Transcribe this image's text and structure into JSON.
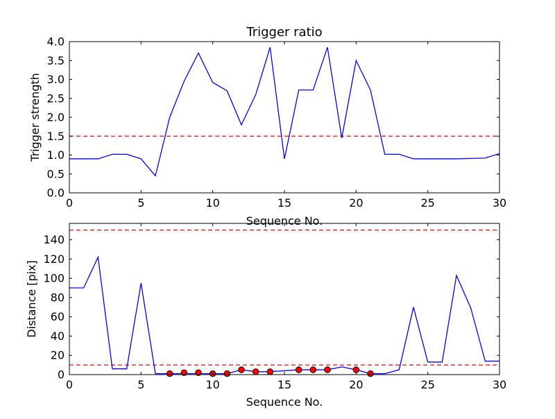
{
  "chart_data": [
    {
      "type": "line",
      "title": "Trigger ratio",
      "xlabel": "Sequence No.",
      "ylabel": "Trigger strength",
      "xlim": [
        0,
        30
      ],
      "ylim": [
        0,
        4.0
      ],
      "xticks": [
        "0",
        "5",
        "10",
        "15",
        "20",
        "25",
        "30"
      ],
      "yticks": [
        "0.0",
        "0.5",
        "1.0",
        "1.5",
        "2.0",
        "2.5",
        "3.0",
        "3.5",
        "4.0"
      ],
      "grid": false,
      "series": [
        {
          "color": "#0000ff",
          "style": "solid",
          "x": [
            0,
            1,
            2,
            3,
            4,
            5,
            6,
            7,
            8,
            9,
            10,
            11,
            12,
            13,
            14,
            15,
            16,
            17,
            18,
            19,
            20,
            21,
            22,
            23,
            24,
            25,
            26,
            27,
            28,
            29,
            30
          ],
          "y": [
            0.9,
            0.9,
            0.9,
            1.02,
            1.02,
            0.9,
            0.45,
            2.0,
            2.95,
            3.7,
            2.92,
            2.7,
            1.8,
            2.6,
            3.85,
            0.9,
            2.72,
            2.72,
            3.85,
            1.45,
            3.5,
            2.72,
            1.02,
            1.02,
            0.9,
            0.9,
            0.9,
            0.9,
            0.91,
            0.92,
            1.04
          ]
        }
      ],
      "reference_lines": [
        {
          "y": 1.5,
          "color": "#ff0000",
          "style": "dashed"
        }
      ]
    },
    {
      "type": "line",
      "title": "",
      "xlabel": "Sequence No.",
      "ylabel": "Distance [pix]",
      "xlim": [
        0,
        30
      ],
      "ylim": [
        0,
        157
      ],
      "xticks": [
        "0",
        "5",
        "10",
        "15",
        "20",
        "25",
        "30"
      ],
      "yticks": [
        "0",
        "20",
        "40",
        "60",
        "80",
        "100",
        "120",
        "140"
      ],
      "grid": false,
      "series": [
        {
          "color": "#0000ff",
          "style": "solid",
          "x": [
            0,
            1,
            2,
            3,
            4,
            5,
            6,
            7,
            8,
            9,
            10,
            11,
            12,
            13,
            14,
            15,
            16,
            17,
            18,
            19,
            20,
            21,
            22,
            23,
            24,
            25,
            26,
            27,
            28,
            29,
            30
          ],
          "y": [
            90,
            90,
            122,
            6,
            6,
            95,
            1,
            1,
            1,
            1,
            1,
            1,
            5,
            3,
            3,
            4,
            5,
            5,
            5,
            8,
            5,
            1,
            1,
            5,
            70,
            13,
            13,
            103,
            69,
            14,
            14
          ]
        },
        {
          "color": "#ff0000",
          "style": "markers",
          "x": [
            7,
            8,
            9,
            10,
            11,
            12,
            13,
            14,
            16,
            17,
            18,
            20,
            21
          ],
          "y": [
            1,
            2,
            2,
            1,
            1,
            5,
            3,
            3,
            5,
            5,
            5,
            5,
            1
          ]
        }
      ],
      "reference_lines": [
        {
          "y": 150,
          "color": "#ff0000",
          "style": "dashed"
        },
        {
          "y": 10,
          "color": "#ff0000",
          "style": "dashed"
        }
      ]
    }
  ]
}
